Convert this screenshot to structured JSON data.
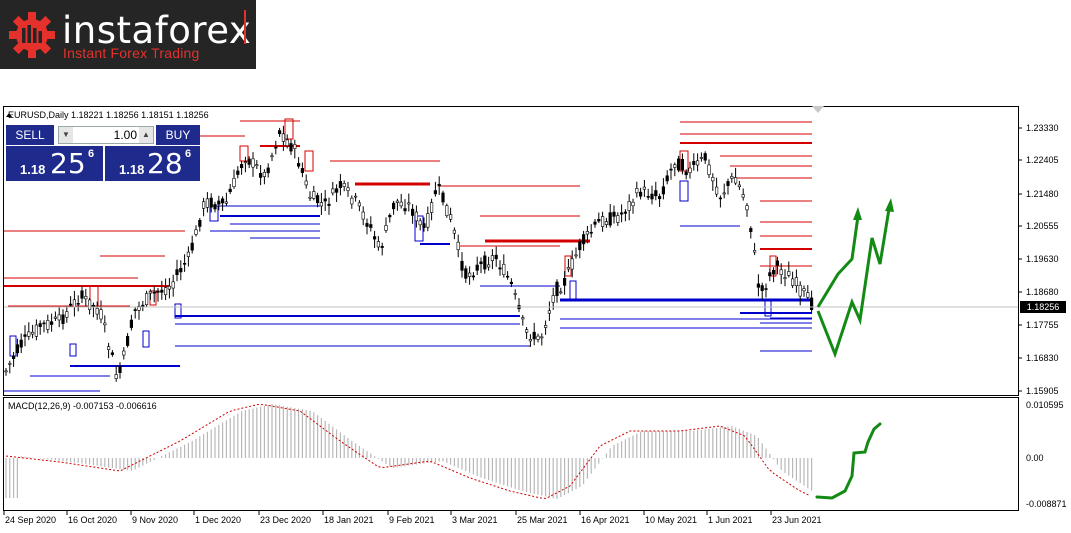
{
  "logo": {
    "brand": "instaforex",
    "tagline": "Instant Forex Trading"
  },
  "colors": {
    "bull_line": "#d40000",
    "bear_line": "#0000cc",
    "arrow": "#138a13",
    "macd_hist": "#b8b8b8",
    "macd_signal": "#d00000",
    "panel": "#1e2a8c"
  },
  "chart": {
    "header": "EURUSD,Daily  1.18221 1.18256 1.18151 1.18256",
    "macd_header": "MACD(12,26,9) -0.007153 -0.006616",
    "price_axis": [
      "1.23330",
      "1.22405",
      "1.21480",
      "1.20555",
      "1.19630",
      "1.18680",
      "1.17755",
      "1.16830",
      "1.15905"
    ],
    "current_price": "1.18256",
    "macd_axis": [
      "0.010595",
      "0.00",
      "-0.008871"
    ],
    "date_axis": [
      "24 Sep 2020",
      "16 Oct 2020",
      "9 Nov 2020",
      "1 Dec 2020",
      "23 Dec 2020",
      "18 Jan 2021",
      "9 Feb 2021",
      "3 Mar 2021",
      "25 Mar 2021",
      "16 Apr 2021",
      "10 May 2021",
      "1 Jun 2021",
      "23 Jun 2021"
    ]
  },
  "trade_panel": {
    "sell_label": "SELL",
    "buy_label": "BUY",
    "lot": "1.00",
    "sell_price": {
      "prefix": "1.18",
      "big": "25",
      "sup": "6"
    },
    "buy_price": {
      "prefix": "1.18",
      "big": "28",
      "sup": "6"
    }
  }
}
